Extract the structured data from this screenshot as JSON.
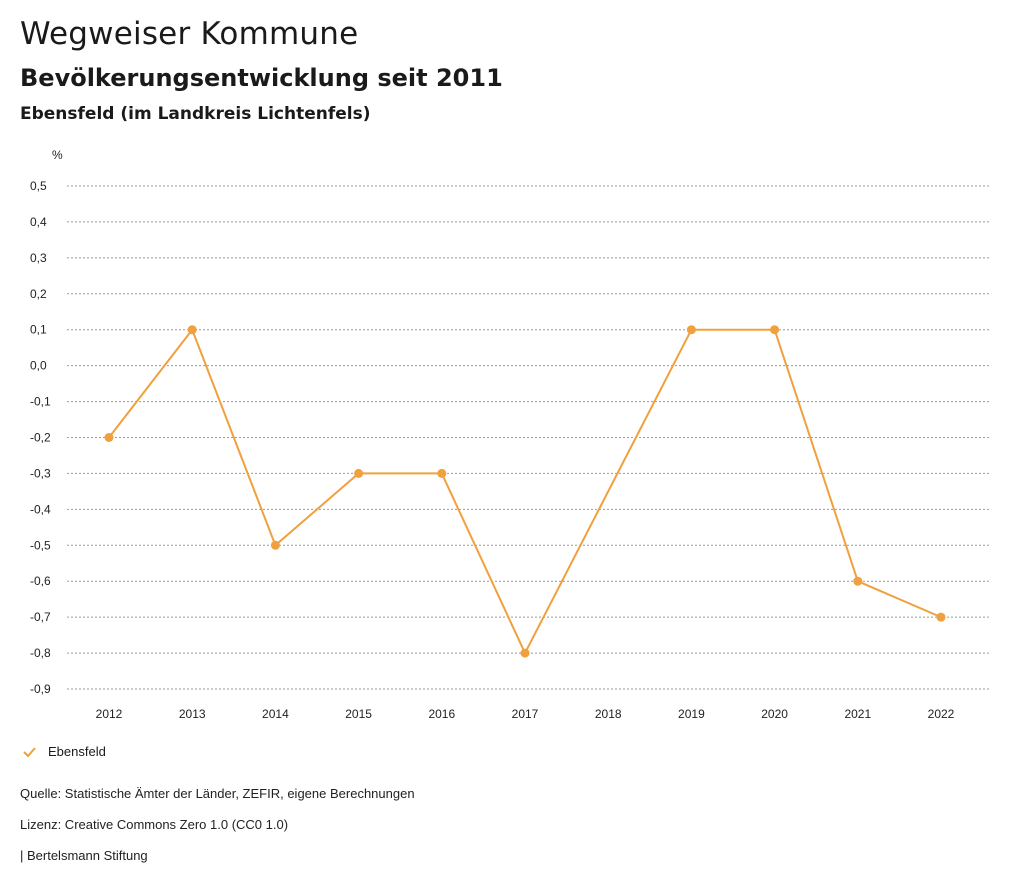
{
  "header": {
    "title": "Wegweiser Kommune",
    "subtitle": "Bevölkerungsentwicklung seit 2011",
    "region": "Ebensfeld (im Landkreis Lichtenfels)"
  },
  "chart_data": {
    "type": "line",
    "title": "Bevölkerungsentwicklung seit 2011",
    "xlabel": "",
    "ylabel": "%",
    "categories": [
      "2012",
      "2013",
      "2014",
      "2015",
      "2016",
      "2017",
      "2018",
      "2019",
      "2020",
      "2021",
      "2022"
    ],
    "series": [
      {
        "name": "Ebensfeld",
        "color": "#f0a03c",
        "values": [
          -0.2,
          0.1,
          -0.5,
          -0.3,
          -0.3,
          -0.8,
          null,
          0.1,
          0.1,
          -0.6,
          -0.7
        ]
      }
    ],
    "ylim": [
      -0.9,
      0.5
    ],
    "yticks": [
      0.5,
      0.4,
      0.3,
      0.2,
      0.1,
      0.0,
      -0.1,
      -0.2,
      -0.3,
      -0.4,
      -0.5,
      -0.6,
      -0.7,
      -0.8,
      -0.9
    ],
    "ytick_labels": [
      "0,5",
      "0,4",
      "0,3",
      "0,2",
      "0,1",
      "0,0",
      "-0,1",
      "-0,2",
      "-0,3",
      "-0,4",
      "-0,5",
      "-0,6",
      "-0,7",
      "-0,8",
      "-0,9"
    ],
    "grid": true,
    "legend_position": "bottom-left"
  },
  "legend": {
    "label": "Ebensfeld",
    "icon": "check-icon"
  },
  "footer": {
    "source": "Quelle: Statistische Ämter der Länder, ZEFIR, eigene Berechnungen",
    "license": "Lizenz: Creative Commons Zero 1.0 (CC0 1.0)",
    "publisher": "| Bertelsmann Stiftung"
  }
}
